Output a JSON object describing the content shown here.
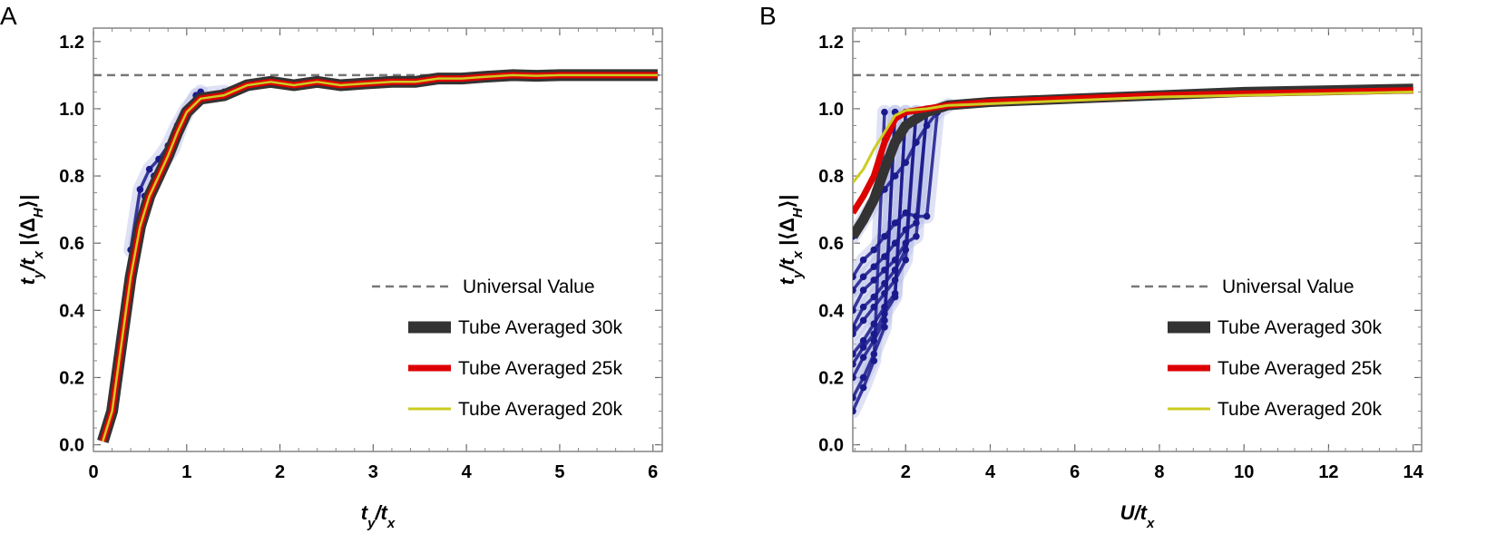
{
  "colors": {
    "universal": "#777777",
    "tube30": "#333333",
    "tube25": "#dd0000",
    "tube20": "#cccc22",
    "raw": "#1a1a8c",
    "raw_faint": "#b9bfe6"
  },
  "chart_data": [
    {
      "type": "line",
      "panel": "A",
      "xlabel": "ty/tx",
      "ylabel": "ty/tx |⟨ΔH⟩|",
      "xlim": [
        0,
        6.1
      ],
      "ylim": [
        -0.02,
        1.24
      ],
      "xticks": [
        "0",
        "1",
        "2",
        "3",
        "4",
        "5",
        "6"
      ],
      "yticks": [
        "0.0",
        "0.2",
        "0.4",
        "0.6",
        "0.8",
        "1.0",
        "1.2"
      ],
      "legend_position": "bottom-right",
      "universal_value": 1.1,
      "series": [
        {
          "name": "Universal Value",
          "style": "dashed",
          "x": [
            0,
            6.1
          ],
          "y": [
            1.1,
            1.1
          ]
        },
        {
          "name": "Tube Averaged 30k",
          "x": [
            0.1,
            0.2,
            0.3,
            0.4,
            0.5,
            0.6,
            0.7,
            0.8,
            0.9,
            1.0,
            1.15,
            1.4,
            1.65,
            1.9,
            2.15,
            2.4,
            2.65,
            2.9,
            3.2,
            3.45,
            3.7,
            3.95,
            4.2,
            4.5,
            4.75,
            5.0,
            5.3,
            5.55,
            5.8,
            6.05
          ],
          "y": [
            0.01,
            0.1,
            0.3,
            0.5,
            0.65,
            0.74,
            0.8,
            0.86,
            0.93,
            0.99,
            1.03,
            1.04,
            1.07,
            1.08,
            1.07,
            1.08,
            1.07,
            1.075,
            1.08,
            1.08,
            1.09,
            1.09,
            1.095,
            1.1,
            1.098,
            1.1,
            1.1,
            1.1,
            1.1,
            1.1
          ]
        },
        {
          "name": "Tube Averaged 25k",
          "x": [
            0.1,
            0.2,
            0.3,
            0.4,
            0.5,
            0.6,
            0.7,
            0.8,
            0.9,
            1.0,
            1.15,
            1.4,
            1.65,
            1.9,
            2.15,
            2.4,
            2.65,
            2.9,
            3.2,
            3.45,
            3.7,
            3.95,
            4.2,
            4.5,
            4.75,
            5.0,
            5.3,
            5.55,
            5.8,
            6.05
          ],
          "y": [
            0.01,
            0.1,
            0.3,
            0.5,
            0.65,
            0.74,
            0.8,
            0.86,
            0.93,
            0.99,
            1.03,
            1.04,
            1.07,
            1.08,
            1.07,
            1.08,
            1.07,
            1.075,
            1.08,
            1.08,
            1.09,
            1.09,
            1.095,
            1.1,
            1.098,
            1.1,
            1.1,
            1.1,
            1.1,
            1.1
          ]
        },
        {
          "name": "Tube Averaged 20k",
          "x": [
            0.1,
            0.2,
            0.3,
            0.4,
            0.5,
            0.6,
            0.7,
            0.8,
            0.9,
            1.0,
            1.15,
            1.4,
            1.65,
            1.9,
            2.15,
            2.4,
            2.65,
            2.9,
            3.2,
            3.45,
            3.7,
            3.95,
            4.2,
            4.5,
            4.75,
            5.0,
            5.3,
            5.55,
            5.8,
            6.05
          ],
          "y": [
            0.01,
            0.1,
            0.3,
            0.5,
            0.65,
            0.74,
            0.8,
            0.86,
            0.93,
            0.99,
            1.03,
            1.04,
            1.07,
            1.08,
            1.07,
            1.08,
            1.07,
            1.075,
            1.08,
            1.08,
            1.09,
            1.09,
            1.095,
            1.1,
            1.098,
            1.1,
            1.1,
            1.1,
            1.1,
            1.1
          ]
        }
      ],
      "raw_curves": [
        {
          "x": [
            0.4,
            0.5,
            0.6,
            0.7,
            0.8,
            0.9,
            1.0,
            1.15
          ],
          "y": [
            0.58,
            0.76,
            0.82,
            0.85,
            0.89,
            0.95,
            1.0,
            1.05
          ]
        },
        {
          "x": [
            0.45,
            0.55,
            0.65,
            0.75,
            0.85,
            0.95,
            1.1,
            1.4
          ],
          "y": [
            0.6,
            0.74,
            0.8,
            0.84,
            0.88,
            0.96,
            1.04,
            1.05
          ]
        }
      ],
      "legend": [
        {
          "label": "Universal Value",
          "style": "dashed"
        },
        {
          "label": "Tube Averaged 30k",
          "style": "thick"
        },
        {
          "label": "Tube Averaged 25k",
          "style": "medium"
        },
        {
          "label": "Tube Averaged 20k",
          "style": "thin"
        }
      ]
    },
    {
      "type": "line",
      "panel": "B",
      "xlabel": "U/tx",
      "ylabel": "ty/tx |⟨ΔH⟩|",
      "xlim": [
        0.75,
        14.2
      ],
      "ylim": [
        -0.02,
        1.24
      ],
      "xticks": [
        "2",
        "4",
        "6",
        "8",
        "10",
        "12",
        "14"
      ],
      "yticks": [
        "0.0",
        "0.2",
        "0.4",
        "0.6",
        "0.8",
        "1.0",
        "1.2"
      ],
      "legend_position": "bottom-right",
      "universal_value": 1.1,
      "series": [
        {
          "name": "Universal Value",
          "style": "dashed",
          "x": [
            0.75,
            14.2
          ],
          "y": [
            1.1,
            1.1
          ]
        },
        {
          "name": "Tube Averaged 30k",
          "x": [
            0.75,
            1.0,
            1.25,
            1.5,
            1.75,
            2.0,
            2.5,
            3.0,
            4.0,
            6.0,
            8.0,
            10.0,
            12.0,
            14.0
          ],
          "y": [
            0.62,
            0.67,
            0.73,
            0.82,
            0.9,
            0.95,
            0.99,
            1.01,
            1.02,
            1.03,
            1.04,
            1.05,
            1.055,
            1.06
          ]
        },
        {
          "name": "Tube Averaged 25k",
          "x": [
            0.75,
            1.0,
            1.25,
            1.5,
            1.75,
            2.0,
            2.5,
            3.0,
            4.0,
            6.0,
            8.0,
            10.0,
            12.0,
            14.0
          ],
          "y": [
            0.69,
            0.74,
            0.8,
            0.9,
            0.97,
            0.99,
            1.0,
            1.01,
            1.02,
            1.03,
            1.04,
            1.045,
            1.05,
            1.055
          ]
        },
        {
          "name": "Tube Averaged 20k",
          "x": [
            0.75,
            1.0,
            1.25,
            1.5,
            1.75,
            2.0,
            2.5,
            3.0,
            4.0,
            6.0,
            8.0,
            10.0,
            12.0,
            14.0
          ],
          "y": [
            0.78,
            0.82,
            0.88,
            0.93,
            0.98,
            0.995,
            1.0,
            1.01,
            1.015,
            1.025,
            1.035,
            1.04,
            1.045,
            1.05
          ]
        }
      ],
      "raw_curves": [
        {
          "x": [
            0.75,
            1.0,
            1.25,
            1.5
          ],
          "y": [
            0.1,
            0.17,
            0.25,
            0.99
          ]
        },
        {
          "x": [
            0.75,
            1.0,
            1.25,
            1.5,
            1.75
          ],
          "y": [
            0.14,
            0.2,
            0.27,
            0.35,
            0.99
          ]
        },
        {
          "x": [
            0.75,
            1.0,
            1.25,
            1.5,
            1.75
          ],
          "y": [
            0.2,
            0.26,
            0.31,
            0.37,
            0.99
          ]
        },
        {
          "x": [
            0.75,
            1.0,
            1.25,
            1.5,
            1.75,
            2.0
          ],
          "y": [
            0.24,
            0.29,
            0.33,
            0.39,
            0.44,
            0.99
          ]
        },
        {
          "x": [
            0.75,
            1.0,
            1.25,
            1.5,
            1.75,
            2.0
          ],
          "y": [
            0.27,
            0.31,
            0.36,
            0.41,
            0.45,
            0.99
          ]
        },
        {
          "x": [
            0.75,
            1.0,
            1.25,
            1.5,
            1.75,
            2.0,
            2.25
          ],
          "y": [
            0.33,
            0.37,
            0.41,
            0.45,
            0.49,
            0.55,
            0.99
          ]
        },
        {
          "x": [
            0.75,
            1.0,
            1.25,
            1.5,
            1.75,
            2.0,
            2.25
          ],
          "y": [
            0.35,
            0.41,
            0.44,
            0.48,
            0.52,
            0.58,
            0.99
          ]
        },
        {
          "x": [
            0.75,
            1.0,
            1.25,
            1.5,
            1.75,
            2.0,
            2.25,
            2.5
          ],
          "y": [
            0.4,
            0.46,
            0.49,
            0.52,
            0.55,
            0.6,
            0.62,
            0.99
          ]
        },
        {
          "x": [
            0.75,
            1.0,
            1.25,
            1.5,
            1.75,
            2.0,
            2.25,
            2.5
          ],
          "y": [
            0.46,
            0.5,
            0.53,
            0.56,
            0.6,
            0.64,
            0.66,
            0.99
          ]
        },
        {
          "x": [
            0.75,
            1.0,
            1.25,
            1.5,
            1.75,
            2.0,
            2.25,
            2.5,
            2.75
          ],
          "y": [
            0.5,
            0.55,
            0.58,
            0.62,
            0.66,
            0.69,
            0.68,
            0.68,
            0.99
          ]
        },
        {
          "x": [
            0.75,
            1.0,
            1.25,
            1.5,
            1.75,
            2.0,
            2.25,
            2.5,
            2.75,
            3.0
          ],
          "y": [
            0.62,
            0.67,
            0.72,
            0.76,
            0.8,
            0.84,
            0.9,
            0.95,
            0.99,
            1.01
          ]
        }
      ],
      "legend": [
        {
          "label": "Universal Value",
          "style": "dashed"
        },
        {
          "label": "Tube Averaged 30k",
          "style": "thick"
        },
        {
          "label": "Tube Averaged 25k",
          "style": "medium"
        },
        {
          "label": "Tube Averaged 20k",
          "style": "thin"
        }
      ]
    }
  ]
}
